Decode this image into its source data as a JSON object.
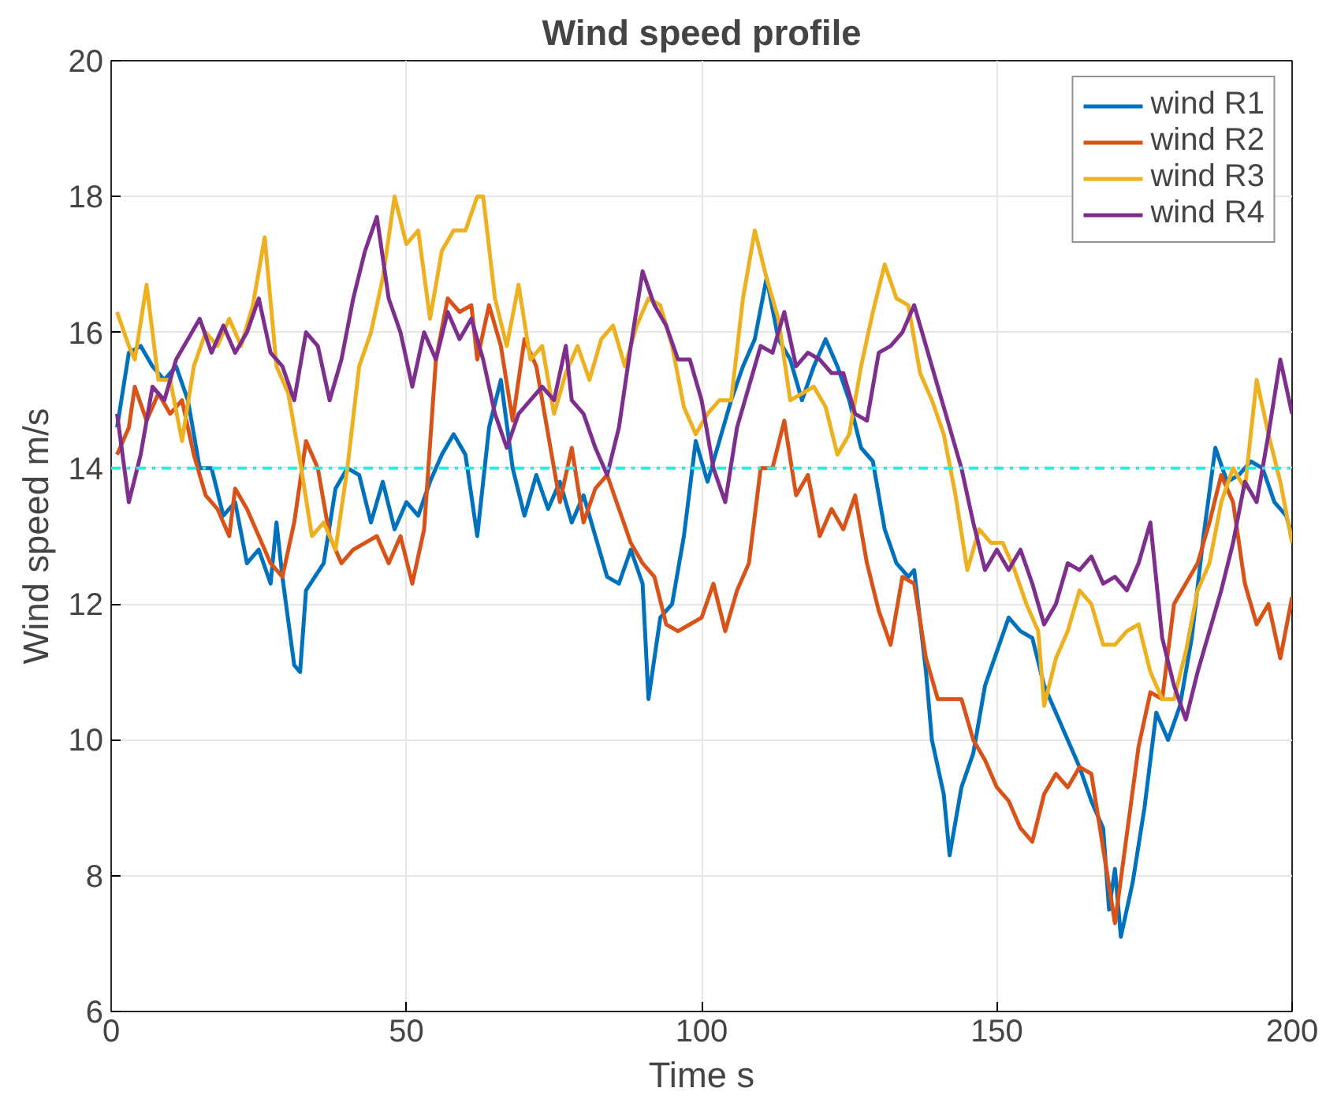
{
  "chart_data": {
    "type": "line",
    "title": "Wind speed profile",
    "xlabel": "Time s",
    "ylabel": "Wind speed m/s",
    "xlim": [
      0,
      200
    ],
    "xticks": [
      0,
      50,
      100,
      150,
      200
    ],
    "ylim": [
      6,
      20
    ],
    "yticks": [
      6,
      8,
      10,
      12,
      14,
      16,
      18,
      20
    ],
    "grid": true,
    "legend": "top right",
    "marker": "none",
    "line_style": "solid",
    "ref_lines": [
      {
        "axis": "y",
        "value": 14,
        "label": null,
        "color": "#22eeee",
        "line_style": "dashdot"
      }
    ],
    "series": [
      {
        "name": "wind R1",
        "color": "#0072bd",
        "x": [
          1,
          3,
          5,
          7,
          9,
          11,
          13,
          15,
          17,
          19,
          21,
          23,
          25,
          27,
          28,
          29,
          31,
          32,
          33,
          36,
          38,
          40,
          42,
          44,
          46,
          48,
          50,
          52,
          54,
          56,
          58,
          60,
          62,
          64,
          66,
          68,
          70,
          72,
          74,
          76,
          78,
          80,
          82,
          84,
          86,
          88,
          90,
          91,
          93,
          95,
          97,
          99,
          101,
          103,
          105,
          107,
          109,
          111,
          113,
          115,
          117,
          119,
          121,
          123,
          125,
          127,
          129,
          131,
          133,
          135,
          136,
          138,
          139,
          141,
          142,
          144,
          146,
          148,
          150,
          152,
          154,
          156,
          158,
          160,
          162,
          164,
          166,
          168,
          169,
          170,
          171,
          173,
          175,
          177,
          179,
          181,
          183,
          185,
          187,
          189,
          191,
          193,
          195,
          197,
          199,
          200
        ],
        "values": [
          14.6,
          15.7,
          15.8,
          15.5,
          15.3,
          15.5,
          15.0,
          14.0,
          14.0,
          13.3,
          13.5,
          12.6,
          12.8,
          12.3,
          13.2,
          12.4,
          11.1,
          11.0,
          12.2,
          12.6,
          13.7,
          14.0,
          13.9,
          13.2,
          13.8,
          13.1,
          13.5,
          13.3,
          13.8,
          14.2,
          14.5,
          14.2,
          13.0,
          14.6,
          15.3,
          14.0,
          13.3,
          13.9,
          13.4,
          13.8,
          13.2,
          13.6,
          13.0,
          12.4,
          12.3,
          12.8,
          12.3,
          10.6,
          11.8,
          12.0,
          13.0,
          14.4,
          13.8,
          14.4,
          15.0,
          15.5,
          15.9,
          16.8,
          15.9,
          15.6,
          15.0,
          15.5,
          15.9,
          15.5,
          15.0,
          14.3,
          14.1,
          13.1,
          12.6,
          12.4,
          12.5,
          11.0,
          10.0,
          9.2,
          8.3,
          9.3,
          9.8,
          10.8,
          11.3,
          11.8,
          11.6,
          11.5,
          10.8,
          10.4,
          10.0,
          9.6,
          9.1,
          8.7,
          7.5,
          8.1,
          7.1,
          7.9,
          9.0,
          10.4,
          10.0,
          10.5,
          11.5,
          13.0,
          14.3,
          13.8,
          13.9,
          14.1,
          14.0,
          13.5,
          13.3,
          13.0
        ]
      },
      {
        "name": "wind R2",
        "color": "#d95319",
        "x": [
          1,
          3,
          4,
          6,
          8,
          10,
          12,
          14,
          16,
          18,
          20,
          21,
          23,
          25,
          27,
          29,
          31,
          33,
          35,
          37,
          39,
          41,
          43,
          45,
          47,
          49,
          51,
          53,
          55,
          57,
          59,
          61,
          62,
          64,
          66,
          68,
          70,
          72,
          74,
          76,
          78,
          80,
          82,
          84,
          86,
          88,
          90,
          92,
          94,
          96,
          98,
          100,
          102,
          104,
          106,
          108,
          110,
          112,
          114,
          116,
          118,
          120,
          122,
          124,
          126,
          128,
          130,
          132,
          134,
          136,
          138,
          140,
          142,
          144,
          146,
          148,
          150,
          152,
          154,
          156,
          158,
          160,
          162,
          164,
          166,
          168,
          170,
          172,
          174,
          176,
          178,
          180,
          182,
          184,
          186,
          188,
          190,
          192,
          194,
          196,
          198,
          200
        ],
        "values": [
          14.2,
          14.6,
          15.2,
          14.7,
          15.1,
          14.8,
          15.0,
          14.2,
          13.6,
          13.4,
          13.0,
          13.7,
          13.4,
          13.0,
          12.6,
          12.4,
          13.2,
          14.4,
          14.0,
          13.0,
          12.6,
          12.8,
          12.9,
          13.0,
          12.6,
          13.0,
          12.3,
          13.1,
          15.6,
          16.5,
          16.3,
          16.4,
          15.6,
          16.4,
          15.8,
          14.7,
          15.9,
          15.5,
          14.5,
          13.5,
          14.3,
          13.2,
          13.7,
          13.9,
          13.4,
          12.9,
          12.6,
          12.4,
          11.7,
          11.6,
          11.7,
          11.8,
          12.3,
          11.6,
          12.2,
          12.6,
          14.0,
          14.0,
          14.7,
          13.6,
          13.9,
          13.0,
          13.4,
          13.1,
          13.6,
          12.6,
          11.9,
          11.4,
          12.4,
          12.3,
          11.2,
          10.6,
          10.6,
          10.6,
          10.0,
          9.7,
          9.3,
          9.1,
          8.7,
          8.5,
          9.2,
          9.5,
          9.3,
          9.6,
          9.5,
          8.4,
          7.3,
          8.6,
          9.9,
          10.7,
          10.6,
          12.0,
          12.3,
          12.6,
          13.2,
          13.9,
          13.5,
          12.3,
          11.7,
          12.0,
          11.2,
          12.1
        ]
      },
      {
        "name": "wind R3",
        "color": "#edb120",
        "x": [
          1,
          3,
          4,
          6,
          8,
          10,
          12,
          14,
          16,
          18,
          20,
          22,
          24,
          26,
          28,
          30,
          32,
          34,
          36,
          38,
          40,
          42,
          44,
          46,
          48,
          50,
          52,
          54,
          56,
          58,
          60,
          62,
          63,
          65,
          67,
          69,
          71,
          73,
          75,
          77,
          79,
          81,
          83,
          85,
          87,
          89,
          91,
          93,
          95,
          97,
          99,
          101,
          103,
          105,
          107,
          109,
          111,
          113,
          115,
          117,
          119,
          121,
          123,
          125,
          127,
          129,
          131,
          133,
          135,
          137,
          139,
          141,
          143,
          145,
          147,
          149,
          151,
          153,
          155,
          157,
          158,
          160,
          162,
          164,
          166,
          168,
          170,
          172,
          174,
          176,
          178,
          180,
          182,
          184,
          186,
          188,
          190,
          192,
          194,
          196,
          198,
          200
        ],
        "values": [
          16.3,
          15.8,
          15.6,
          16.7,
          15.3,
          15.3,
          14.4,
          15.5,
          16.0,
          15.8,
          16.2,
          15.8,
          16.4,
          17.4,
          15.5,
          15.1,
          14.1,
          13.0,
          13.2,
          12.8,
          14.0,
          15.5,
          16.0,
          16.8,
          18.0,
          17.3,
          17.5,
          16.2,
          17.2,
          17.5,
          17.5,
          18.0,
          18.0,
          16.5,
          15.8,
          16.7,
          15.6,
          15.8,
          14.8,
          15.4,
          15.8,
          15.3,
          15.9,
          16.1,
          15.5,
          16.1,
          16.5,
          16.4,
          15.8,
          14.9,
          14.5,
          14.8,
          15.0,
          15.0,
          16.5,
          17.5,
          16.8,
          16.2,
          15.0,
          15.1,
          15.2,
          14.9,
          14.2,
          14.5,
          15.5,
          16.3,
          17.0,
          16.5,
          16.4,
          15.4,
          15.0,
          14.5,
          13.6,
          12.5,
          13.1,
          12.9,
          12.9,
          12.5,
          12.0,
          11.6,
          10.5,
          11.2,
          11.6,
          12.2,
          12.0,
          11.4,
          11.4,
          11.6,
          11.7,
          11.0,
          10.6,
          10.6,
          11.3,
          12.2,
          12.6,
          13.5,
          14.0,
          13.7,
          15.3,
          14.5,
          13.8,
          12.9
        ]
      },
      {
        "name": "wind R4",
        "color": "#7e2f8e",
        "x": [
          1,
          3,
          5,
          7,
          9,
          11,
          13,
          15,
          17,
          19,
          21,
          23,
          25,
          27,
          29,
          31,
          33,
          35,
          37,
          39,
          41,
          43,
          45,
          47,
          49,
          51,
          53,
          55,
          57,
          59,
          61,
          63,
          65,
          67,
          69,
          71,
          73,
          75,
          77,
          78,
          80,
          82,
          84,
          86,
          88,
          90,
          92,
          94,
          96,
          98,
          100,
          102,
          104,
          106,
          108,
          110,
          112,
          114,
          116,
          118,
          120,
          122,
          124,
          126,
          128,
          130,
          132,
          134,
          136,
          138,
          140,
          142,
          144,
          146,
          148,
          150,
          152,
          154,
          156,
          158,
          160,
          162,
          164,
          166,
          168,
          170,
          172,
          174,
          176,
          178,
          180,
          182,
          184,
          186,
          188,
          190,
          192,
          194,
          196,
          198,
          200
        ],
        "values": [
          14.8,
          13.5,
          14.2,
          15.2,
          15.0,
          15.6,
          15.9,
          16.2,
          15.7,
          16.1,
          15.7,
          16.0,
          16.5,
          15.7,
          15.5,
          15.0,
          16.0,
          15.8,
          15.0,
          15.6,
          16.5,
          17.2,
          17.7,
          16.5,
          16.0,
          15.2,
          16.0,
          15.6,
          16.3,
          15.9,
          16.2,
          15.6,
          14.8,
          14.3,
          14.8,
          15.0,
          15.2,
          15.0,
          15.8,
          15.0,
          14.8,
          14.3,
          13.9,
          14.6,
          15.8,
          16.9,
          16.4,
          16.1,
          15.6,
          15.6,
          15.0,
          14.0,
          13.5,
          14.6,
          15.2,
          15.8,
          15.7,
          16.3,
          15.5,
          15.7,
          15.6,
          15.4,
          15.4,
          14.8,
          14.7,
          15.7,
          15.8,
          16.0,
          16.4,
          15.8,
          15.2,
          14.6,
          14.0,
          13.2,
          12.5,
          12.8,
          12.5,
          12.8,
          12.3,
          11.7,
          12.0,
          12.6,
          12.5,
          12.7,
          12.3,
          12.4,
          12.2,
          12.6,
          13.2,
          11.5,
          10.8,
          10.3,
          11.0,
          11.6,
          12.2,
          12.9,
          13.8,
          13.5,
          14.5,
          15.6,
          14.8
        ]
      }
    ]
  }
}
